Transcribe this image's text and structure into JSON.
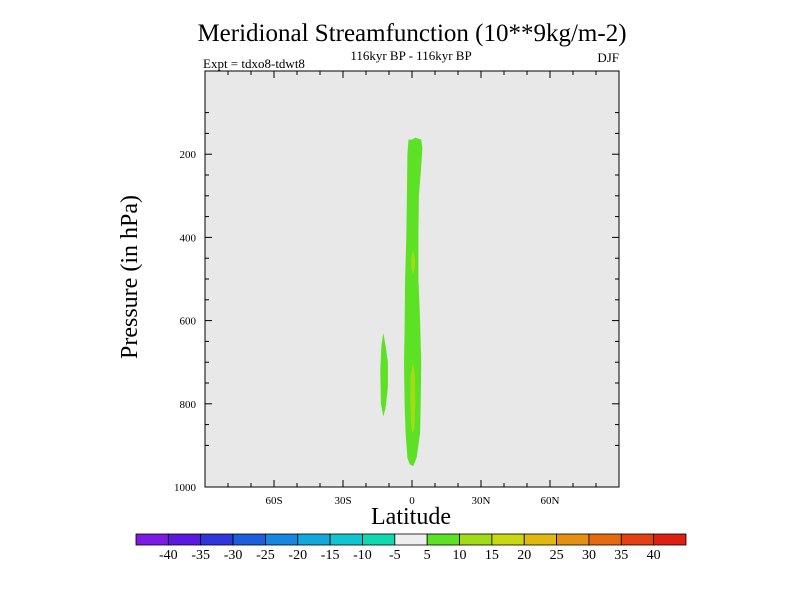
{
  "chart_data": {
    "type": "heatmap",
    "title": "Meridional Streamfunction (10**9kg/m-2)",
    "subtitle": "116kyr BP - 116kyr BP",
    "left_label": "Expt = tdxo8-tdwt8",
    "right_label": "DJF",
    "xlabel": "Latitude",
    "ylabel": "Pressure (in hPa)",
    "xlim": [
      -90,
      90
    ],
    "ylim": [
      0,
      1000
    ],
    "y_inverted": true,
    "x_ticks": [
      {
        "value": -60,
        "label": "60S"
      },
      {
        "value": -30,
        "label": "30S"
      },
      {
        "value": 0,
        "label": "0"
      },
      {
        "value": 30,
        "label": "30N"
      },
      {
        "value": 60,
        "label": "60N"
      }
    ],
    "y_ticks": [
      {
        "value": 200,
        "label": "200"
      },
      {
        "value": 400,
        "label": "400"
      },
      {
        "value": 600,
        "label": "600"
      },
      {
        "value": 800,
        "label": "800"
      },
      {
        "value": 1000,
        "label": "1000"
      }
    ],
    "background_color": "#e8e8e8",
    "contour_levels": [
      -40,
      -35,
      -30,
      -25,
      -20,
      -15,
      -10,
      -5,
      5,
      10,
      15,
      20,
      25,
      30,
      35,
      40
    ],
    "colorbar_colors": [
      "#7e1ae6",
      "#5a19e0",
      "#2e36dc",
      "#1c5ede",
      "#1686e0",
      "#12a8dc",
      "#10c4d2",
      "#10d9b0",
      "#eeeeee",
      "#5ce125",
      "#a0dc18",
      "#c8d812",
      "#e0b810",
      "#e49010",
      "#e66a10",
      "#e44010",
      "#de2010"
    ],
    "shaded_regions": [
      {
        "range": "5 to 10",
        "color": "#5ce125",
        "polygon": [
          [
            0,
            165
          ],
          [
            1.5,
            160
          ],
          [
            4,
            165
          ],
          [
            4.5,
            185
          ],
          [
            4,
            230
          ],
          [
            3,
            300
          ],
          [
            2.8,
            400
          ],
          [
            2.8,
            500
          ],
          [
            3.5,
            600
          ],
          [
            4,
            700
          ],
          [
            3.8,
            800
          ],
          [
            3.5,
            870
          ],
          [
            2,
            930
          ],
          [
            0.5,
            950
          ],
          [
            -1,
            945
          ],
          [
            -2,
            930
          ],
          [
            -2.8,
            870
          ],
          [
            -3.2,
            800
          ],
          [
            -3.5,
            700
          ],
          [
            -3.2,
            620
          ],
          [
            -3,
            500
          ],
          [
            -2.5,
            400
          ],
          [
            -2.2,
            300
          ],
          [
            -2,
            200
          ],
          [
            -1.5,
            165
          ]
        ]
      },
      {
        "range": "5 to 10",
        "color": "#5ce125",
        "polygon": [
          [
            -12.5,
            630
          ],
          [
            -11.5,
            660
          ],
          [
            -10.5,
            700
          ],
          [
            -10.5,
            760
          ],
          [
            -11.5,
            810
          ],
          [
            -12.5,
            830
          ],
          [
            -13.5,
            800
          ],
          [
            -13.8,
            720
          ],
          [
            -13.3,
            660
          ]
        ]
      },
      {
        "range": "10 to 15",
        "color": "#a0dc18",
        "polygon": [
          [
            0.5,
            430
          ],
          [
            1.3,
            450
          ],
          [
            1.3,
            470
          ],
          [
            0.5,
            490
          ],
          [
            -0.3,
            470
          ],
          [
            -0.3,
            450
          ]
        ]
      },
      {
        "range": "10 to 15",
        "color": "#a0dc18",
        "polygon": [
          [
            0.5,
            700
          ],
          [
            1.3,
            730
          ],
          [
            1.5,
            800
          ],
          [
            1,
            860
          ],
          [
            0.2,
            870
          ],
          [
            -0.4,
            850
          ],
          [
            -0.8,
            790
          ],
          [
            -0.6,
            730
          ]
        ]
      }
    ]
  }
}
